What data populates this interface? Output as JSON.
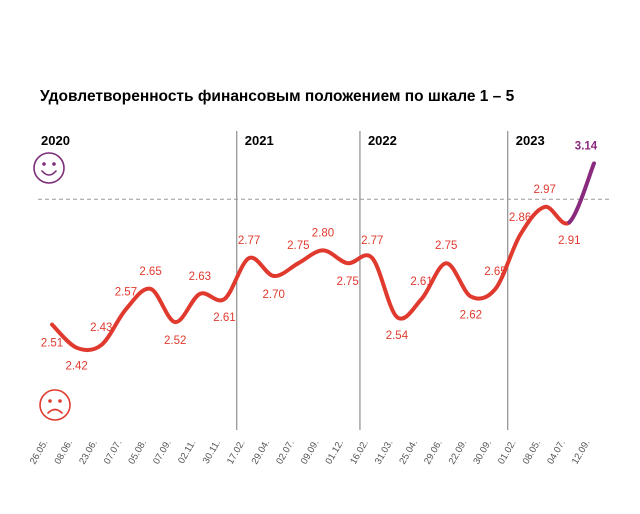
{
  "chart_data": {
    "type": "line",
    "title": "Удовлетворенность финансовым положением по шкале 1 – 5",
    "xlabel": "",
    "ylabel": "",
    "ylim": [
      2.2,
      3.2
    ],
    "grid": false,
    "categories": [
      "26.05.",
      "08.06.",
      "23.06.",
      "07.07.",
      "05.08.",
      "07.09.",
      "02.11.",
      "30.11.",
      "17.02.",
      "29.04.",
      "02.07.",
      "09.09.",
      "01.12.",
      "16.02.",
      "31.03.",
      "25.04.",
      "29.06.",
      "22.09.",
      "30.09.",
      "01.02.",
      "08.05.",
      "04.07.",
      "12.09."
    ],
    "series": [
      {
        "values": [
          2.51,
          2.42,
          2.43,
          2.57,
          2.65,
          2.52,
          2.63,
          2.61,
          2.77,
          2.7,
          2.75,
          2.8,
          2.75,
          2.77,
          2.54,
          2.61,
          2.75,
          2.62,
          2.65,
          2.86,
          2.97,
          2.91,
          3.14
        ]
      }
    ],
    "data_labels": [
      "2.51",
      "2.42",
      "2.43",
      "2.57",
      "2.65",
      "2.52",
      "2.63",
      "2.61",
      "2.77",
      "2.70",
      "2.75",
      "2.80",
      "2.75",
      "2.77",
      "2.54",
      "2.61",
      "2.75",
      "2.62",
      "2.65",
      "2.86",
      "2.97",
      "2.91",
      "3.14"
    ],
    "years": [
      {
        "label": "2020",
        "start_index": 0
      },
      {
        "label": "2021",
        "start_index": 8
      },
      {
        "label": "2022",
        "start_index": 13
      },
      {
        "label": "2023",
        "start_index": 19
      }
    ],
    "reference_line": {
      "value": 3.0,
      "style": "dashed"
    },
    "colors": {
      "line": "#e03a2f",
      "highlight": "#8a2a7e",
      "face_icons": "#7b2d7a",
      "sad_icon": "#e03a2f",
      "divider": "#777777"
    }
  }
}
